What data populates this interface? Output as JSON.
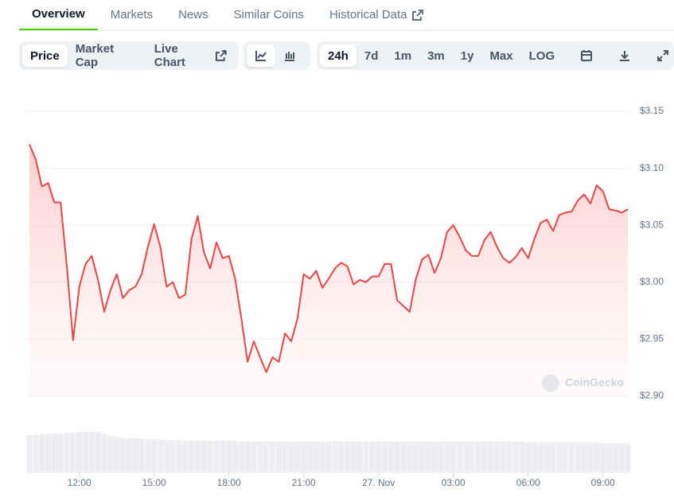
{
  "tabs": [
    {
      "label": "Overview",
      "active": true
    },
    {
      "label": "Markets"
    },
    {
      "label": "News"
    },
    {
      "label": "Similar Coins"
    },
    {
      "label": "Historical Data"
    }
  ],
  "toolbar": {
    "metric": [
      {
        "label": "Price",
        "active": true
      },
      {
        "label": "Market Cap"
      },
      {
        "label": "Live Chart"
      }
    ],
    "ranges": [
      {
        "label": "24h",
        "active": true
      },
      {
        "label": "7d"
      },
      {
        "label": "1m"
      },
      {
        "label": "3m"
      },
      {
        "label": "1y"
      },
      {
        "label": "Max"
      },
      {
        "label": "LOG"
      }
    ]
  },
  "chart_data": {
    "type": "area",
    "watermark": "CoinGecko",
    "color": "#ef4444",
    "x": [
      10,
      10.25,
      10.5,
      10.75,
      11,
      11.25,
      11.5,
      11.75,
      12,
      12.25,
      12.5,
      12.75,
      13,
      13.25,
      13.5,
      13.75,
      14,
      14.25,
      14.5,
      14.75,
      15,
      15.25,
      15.5,
      15.75,
      16,
      16.25,
      16.5,
      16.75,
      17,
      17.25,
      17.5,
      17.75,
      18,
      18.25,
      18.5,
      18.75,
      19,
      19.25,
      19.5,
      19.75,
      20,
      20.25,
      20.5,
      20.75,
      21,
      21.25,
      21.5,
      21.75,
      22,
      22.25,
      22.5,
      22.75,
      23,
      23.25,
      23.5,
      23.75,
      24,
      24.25,
      24.5,
      24.75,
      25,
      25.25,
      25.5,
      25.75,
      26,
      26.25,
      26.5,
      26.75,
      27,
      27.25,
      27.5,
      27.75,
      28,
      28.25,
      28.5,
      28.75,
      29,
      29.25,
      29.5,
      29.75,
      30,
      30.25,
      30.5,
      30.75,
      31,
      31.25,
      31.5,
      31.75,
      32,
      32.25,
      32.5,
      32.75,
      33,
      33.25,
      33.5,
      33.75,
      34
    ],
    "values": [
      3.121,
      3.108,
      3.084,
      3.087,
      3.07,
      3.07,
      3.014,
      2.949,
      2.996,
      3.016,
      3.023,
      3.002,
      2.974,
      2.993,
      3.007,
      2.986,
      2.993,
      2.996,
      3.007,
      3.031,
      3.051,
      3.031,
      2.996,
      3.0,
      2.986,
      2.989,
      3.038,
      3.058,
      3.026,
      3.012,
      3.035,
      3.021,
      3.023,
      3.003,
      2.968,
      2.93,
      2.948,
      2.934,
      2.921,
      2.934,
      2.93,
      2.955,
      2.948,
      2.968,
      3.007,
      3.003,
      3.01,
      2.995,
      3.003,
      3.012,
      3.017,
      3.014,
      2.998,
      3.002,
      3.0,
      3.005,
      3.005,
      3.016,
      3.016,
      2.984,
      2.979,
      2.974,
      3.003,
      3.02,
      3.024,
      3.008,
      3.021,
      3.044,
      3.05,
      3.04,
      3.028,
      3.023,
      3.023,
      3.037,
      3.044,
      3.031,
      3.021,
      3.017,
      3.022,
      3.03,
      3.021,
      3.038,
      3.052,
      3.055,
      3.045,
      3.059,
      3.061,
      3.062,
      3.072,
      3.077,
      3.069,
      3.085,
      3.08,
      3.064,
      3.063,
      3.061,
      3.064
    ],
    "volume": [
      48,
      48,
      49,
      49,
      50,
      50,
      51,
      51,
      52,
      52,
      52,
      52,
      50,
      47,
      46,
      45,
      44,
      44,
      43,
      43,
      43,
      42,
      42,
      42,
      42,
      41,
      41,
      41,
      41,
      41,
      41,
      41,
      41,
      41,
      40,
      40,
      40,
      40,
      40,
      40,
      40,
      40,
      40,
      40,
      40,
      40,
      40,
      40,
      40,
      40,
      40,
      40,
      40,
      40,
      40,
      40,
      40,
      40,
      40,
      40,
      40,
      40,
      40,
      40,
      40,
      40,
      40,
      40,
      40,
      40,
      40,
      40,
      40,
      40,
      40,
      40,
      40,
      40,
      40,
      40,
      39,
      39,
      39,
      39,
      39,
      39,
      39,
      39,
      39,
      39,
      39,
      39,
      38,
      38,
      38,
      38,
      38
    ],
    "xlim": [
      10,
      34
    ],
    "xticks": [
      {
        "value": 12,
        "label": "12:00"
      },
      {
        "value": 15,
        "label": "15:00"
      },
      {
        "value": 18,
        "label": "18:00"
      },
      {
        "value": 21,
        "label": "21:00"
      },
      {
        "value": 24,
        "label": "27. Nov"
      },
      {
        "value": 27,
        "label": "03:00"
      },
      {
        "value": 30,
        "label": "06:00"
      },
      {
        "value": 33,
        "label": "09:00"
      }
    ],
    "ylim": [
      2.9,
      3.15
    ],
    "yticks": [
      {
        "value": 2.9,
        "label": "$2.90"
      },
      {
        "value": 2.95,
        "label": "$2.95"
      },
      {
        "value": 3.0,
        "label": "$3.00"
      },
      {
        "value": 3.05,
        "label": "$3.05"
      },
      {
        "value": 3.1,
        "label": "$3.10"
      },
      {
        "value": 3.15,
        "label": "$3.15"
      }
    ],
    "grid": true
  }
}
